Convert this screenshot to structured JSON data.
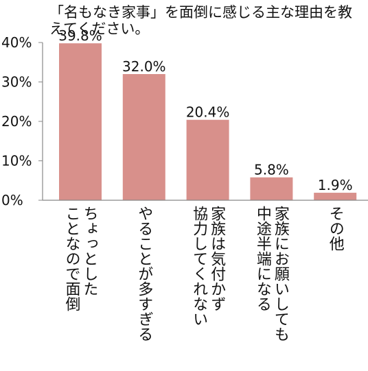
{
  "chart_data": {
    "type": "bar",
    "title": "「名もなき家事」を面倒に感じる主な理由を教えてください。",
    "xlabel": "",
    "ylabel": "",
    "categories": [
      [
        "ちょっとした",
        "ことなので面倒"
      ],
      [
        "やることが多すぎる"
      ],
      [
        "家族は気付かず",
        "協力してくれない"
      ],
      [
        "家族にお願いしても",
        "中途半端になる"
      ],
      [
        "その他"
      ]
    ],
    "values": [
      39.8,
      32.0,
      20.4,
      5.8,
      1.9
    ],
    "data_labels": [
      "39.8%",
      "32.0%",
      "20.4%",
      "5.8%",
      "1.9%"
    ],
    "yticks": [
      {
        "value": 0,
        "label": "0%"
      },
      {
        "value": 10,
        "label": "10%"
      },
      {
        "value": 20,
        "label": "20%"
      },
      {
        "value": 30,
        "label": "30%"
      },
      {
        "value": 40,
        "label": "40%"
      }
    ],
    "ylim": [
      0,
      40
    ],
    "grid": false,
    "bar_color": "#d8908b",
    "axis_color": "#888888"
  }
}
